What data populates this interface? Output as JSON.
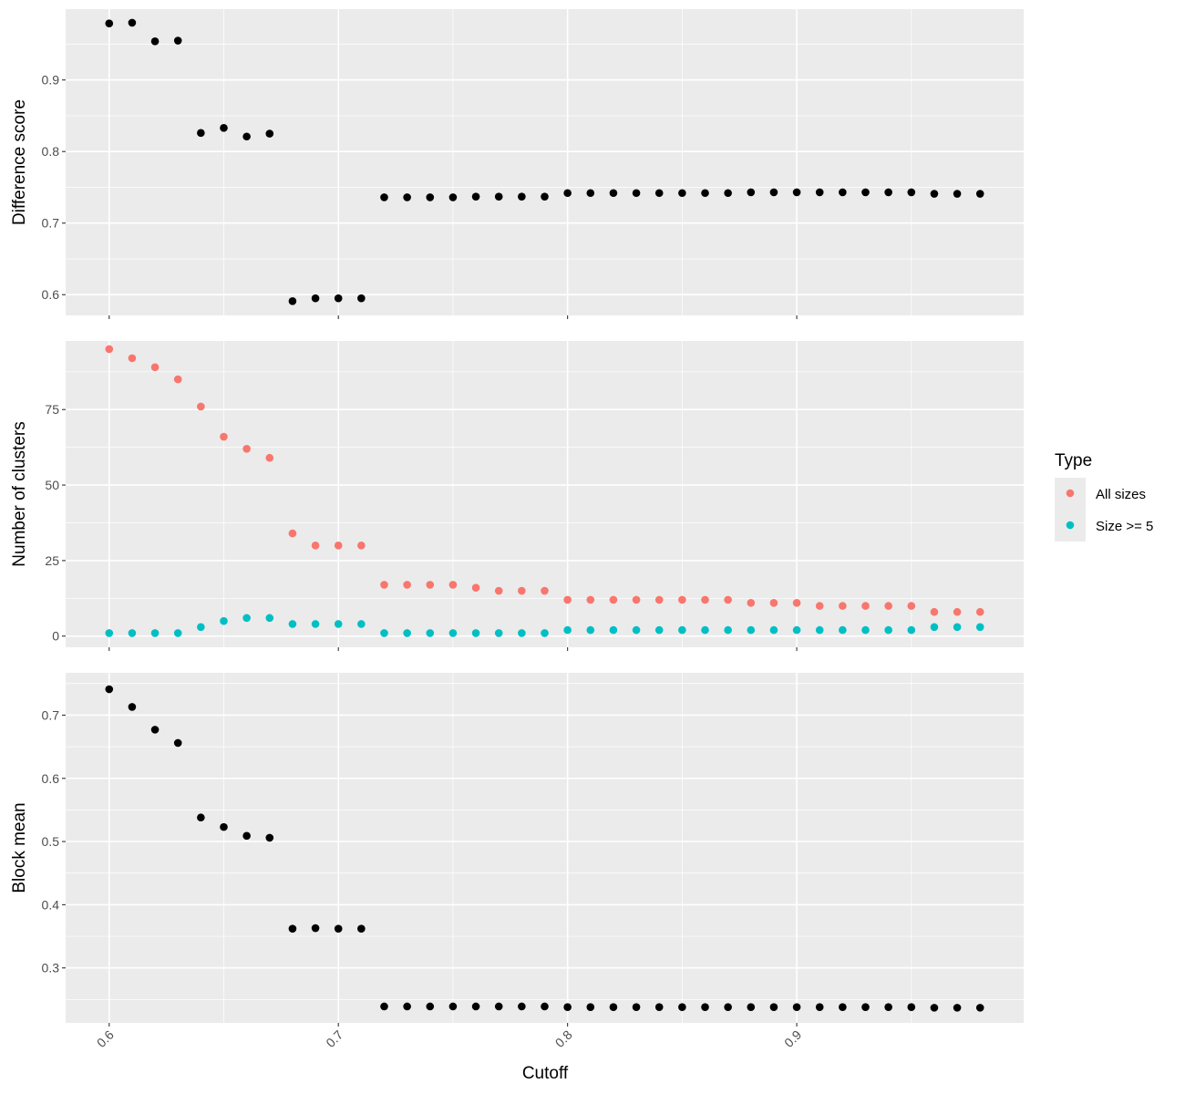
{
  "chart_data": {
    "type": "scatter",
    "facets": "stacked-vertical",
    "x_label": "Cutoff",
    "x_range": [
      0.581,
      0.999
    ],
    "x_ticks": [
      0.6,
      0.7,
      0.8,
      0.9
    ],
    "x_tick_labels": [
      "0.6",
      "0.7",
      "0.8",
      "0.9"
    ],
    "x": [
      0.6,
      0.61,
      0.62,
      0.63,
      0.64,
      0.65,
      0.66,
      0.67,
      0.68,
      0.69,
      0.7,
      0.71,
      0.72,
      0.73,
      0.74,
      0.75,
      0.76,
      0.77,
      0.78,
      0.79,
      0.8,
      0.81,
      0.82,
      0.83,
      0.84,
      0.85,
      0.86,
      0.87,
      0.88,
      0.89,
      0.9,
      0.91,
      0.92,
      0.93,
      0.94,
      0.95,
      0.96,
      0.97,
      0.98
    ],
    "grid": true,
    "panels": [
      {
        "ylabel": "Difference score",
        "ylim": [
          0.571,
          0.999
        ],
        "y_ticks": [
          0.6,
          0.7,
          0.8,
          0.9
        ],
        "y_tick_labels": [
          "0.6",
          "0.7",
          "0.8",
          "0.9"
        ],
        "series": [
          {
            "color": "#000000",
            "values": [
              0.979,
              0.98,
              0.954,
              0.955,
              0.826,
              0.833,
              0.821,
              0.825,
              0.591,
              0.595,
              0.595,
              0.595,
              0.736,
              0.736,
              0.736,
              0.736,
              0.737,
              0.737,
              0.737,
              0.737,
              0.742,
              0.742,
              0.742,
              0.742,
              0.742,
              0.742,
              0.742,
              0.742,
              0.743,
              0.743,
              0.743,
              0.743,
              0.743,
              0.743,
              0.743,
              0.743,
              0.741,
              0.741,
              0.741
            ]
          }
        ]
      },
      {
        "ylabel": "Number of clusters",
        "ylim": [
          -3.7,
          97.7
        ],
        "y_ticks": [
          0,
          25,
          50,
          75
        ],
        "y_tick_labels": [
          "0",
          "25",
          "50",
          "75"
        ],
        "series": [
          {
            "name": "All sizes",
            "color": "#F8766D",
            "values": [
              95,
              92,
              89,
              85,
              76,
              66,
              62,
              59,
              34,
              30,
              30,
              30,
              17,
              17,
              17,
              17,
              16,
              15,
              15,
              15,
              12,
              12,
              12,
              12,
              12,
              12,
              12,
              12,
              11,
              11,
              11,
              10,
              10,
              10,
              10,
              10,
              8,
              8,
              8
            ]
          },
          {
            "name": "Size >= 5",
            "color": "#00BFC4",
            "values": [
              1,
              1,
              1,
              1,
              3,
              5,
              6,
              6,
              4,
              4,
              4,
              4,
              1,
              1,
              1,
              1,
              1,
              1,
              1,
              1,
              2,
              2,
              2,
              2,
              2,
              2,
              2,
              2,
              2,
              2,
              2,
              2,
              2,
              2,
              2,
              2,
              3,
              3,
              3
            ]
          }
        ]
      },
      {
        "ylabel": "Block mean",
        "ylim": [
          0.213,
          0.767
        ],
        "y_ticks": [
          0.3,
          0.4,
          0.5,
          0.6,
          0.7
        ],
        "y_tick_labels": [
          "0.3",
          "0.4",
          "0.5",
          "0.6",
          "0.7"
        ],
        "series": [
          {
            "color": "#000000",
            "values": [
              0.741,
              0.713,
              0.677,
              0.656,
              0.538,
              0.523,
              0.509,
              0.506,
              0.362,
              0.363,
              0.362,
              0.362,
              0.239,
              0.239,
              0.239,
              0.239,
              0.239,
              0.239,
              0.239,
              0.239,
              0.238,
              0.238,
              0.238,
              0.238,
              0.238,
              0.238,
              0.238,
              0.238,
              0.238,
              0.238,
              0.238,
              0.238,
              0.238,
              0.238,
              0.238,
              0.238,
              0.237,
              0.237,
              0.237
            ]
          }
        ]
      }
    ],
    "legend": {
      "title": "Type",
      "position": "right",
      "items": [
        {
          "label": "All sizes",
          "color": "#F8766D"
        },
        {
          "label": "Size >= 5",
          "color": "#00BFC4"
        }
      ]
    }
  }
}
